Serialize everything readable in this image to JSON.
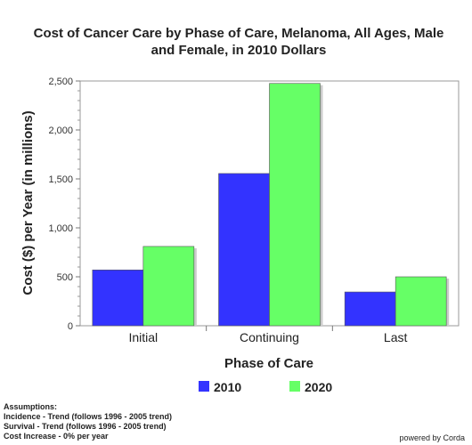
{
  "chart_data": {
    "type": "bar",
    "title_lines": [
      "Cost of Cancer Care by Phase of Care, Melanoma, All Ages, Male",
      "and Female, in 2010 Dollars"
    ],
    "xlabel": "Phase of Care",
    "ylabel": "Cost ($) per Year (in millions)",
    "categories": [
      "Initial",
      "Continuing",
      "Last"
    ],
    "series": [
      {
        "name": "2010",
        "color": "#3333ff",
        "values": [
          570,
          1555,
          345
        ]
      },
      {
        "name": "2020",
        "color": "#66ff66",
        "values": [
          810,
          2475,
          500
        ]
      }
    ],
    "ylim": [
      0,
      2500
    ],
    "yticks": [
      0,
      500,
      1000,
      1500,
      2000,
      2500
    ],
    "ytick_labels": [
      "0",
      "500",
      "1,000",
      "1,500",
      "2,000",
      "2,500"
    ],
    "grid": false,
    "legend_position": "bottom"
  },
  "assumptions": {
    "heading": "Assumptions:",
    "lines": [
      "Incidence - Trend (follows 1996 - 2005 trend)",
      "Survival - Trend (follows 1996 - 2005 trend)",
      "Cost Increase - 0% per year"
    ]
  },
  "credit": "powered by Corda"
}
